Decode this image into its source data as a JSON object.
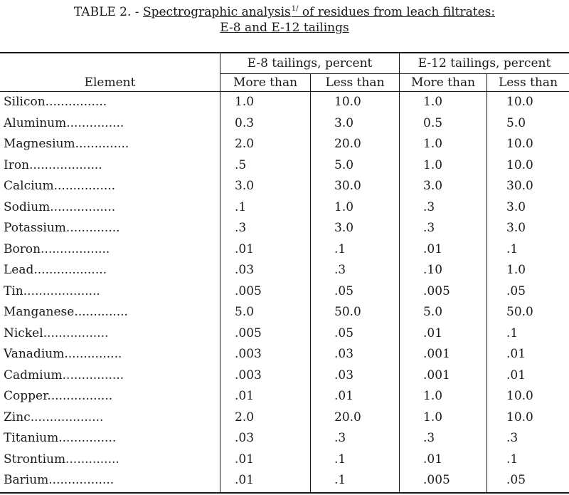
{
  "title": {
    "prefix": "TABLE 2. - ",
    "line1_underlined": "Spectrographic analysis",
    "footnote": "1/",
    "line1_rest": " of residues from leach filtrates:",
    "line2": "E-8 and E-12 tailings"
  },
  "table": {
    "header": {
      "element": "Element",
      "group_e8": "E-8 tailings, percent",
      "group_e12": "E-12 tailings, percent",
      "more_than": "More than",
      "less_than": "Less than"
    },
    "rows": [
      {
        "element": "Silicon",
        "leader": "................",
        "e8_more": "1.0",
        "e8_less": "10.0",
        "e12_more": "1.0",
        "e12_less": "10.0"
      },
      {
        "element": "Aluminum",
        "leader": "...............",
        "e8_more": "0.3",
        "e8_less": "3.0",
        "e12_more": "0.5",
        "e12_less": "5.0"
      },
      {
        "element": "Magnesium",
        "leader": "..............",
        "e8_more": "2.0",
        "e8_less": "20.0",
        "e12_more": "1.0",
        "e12_less": "10.0"
      },
      {
        "element": "Iron",
        "leader": "...................",
        "e8_more": ".5",
        "e8_less": "5.0",
        "e12_more": "1.0",
        "e12_less": "10.0"
      },
      {
        "element": "Calcium",
        "leader": "................",
        "e8_more": "3.0",
        "e8_less": "30.0",
        "e12_more": "3.0",
        "e12_less": "30.0"
      },
      {
        "element": "Sodium",
        "leader": ".................",
        "e8_more": ".1",
        "e8_less": "1.0",
        "e12_more": ".3",
        "e12_less": "3.0"
      },
      {
        "element": "Potassium",
        "leader": "..............",
        "e8_more": ".3",
        "e8_less": "3.0",
        "e12_more": ".3",
        "e12_less": "3.0"
      },
      {
        "element": "Boron",
        "leader": "..................",
        "e8_more": ".01",
        "e8_less": ".1",
        "e12_more": ".01",
        "e12_less": ".1"
      },
      {
        "element": "Lead",
        "leader": "...................",
        "e8_more": ".03",
        "e8_less": ".3",
        "e12_more": ".10",
        "e12_less": "1.0"
      },
      {
        "element": "Tin",
        "leader": "....................",
        "e8_more": ".005",
        "e8_less": ".05",
        "e12_more": ".005",
        "e12_less": ".05"
      },
      {
        "element": "Manganese",
        "leader": "..............",
        "e8_more": "5.0",
        "e8_less": "50.0",
        "e12_more": "5.0",
        "e12_less": "50.0"
      },
      {
        "element": "Nickel",
        "leader": ".................",
        "e8_more": ".005",
        "e8_less": ".05",
        "e12_more": ".01",
        "e12_less": ".1"
      },
      {
        "element": "Vanadium",
        "leader": "...............",
        "e8_more": ".003",
        "e8_less": ".03",
        "e12_more": ".001",
        "e12_less": ".01"
      },
      {
        "element": "Cadmium",
        "leader": "................",
        "e8_more": ".003",
        "e8_less": ".03",
        "e12_more": ".001",
        "e12_less": ".01"
      },
      {
        "element": "Copper",
        "leader": ".................",
        "e8_more": ".01",
        "e8_less": ".01",
        "e12_more": "1.0",
        "e12_less": "10.0"
      },
      {
        "element": "Zinc",
        "leader": "...................",
        "e8_more": "2.0",
        "e8_less": "20.0",
        "e12_more": "1.0",
        "e12_less": "10.0"
      },
      {
        "element": "Titanium",
        "leader": "...............",
        "e8_more": ".03",
        "e8_less": ".3",
        "e12_more": ".3",
        "e12_less": ".3"
      },
      {
        "element": "Strontium",
        "leader": "..............",
        "e8_more": ".01",
        "e8_less": ".1",
        "e12_more": ".01",
        "e12_less": ".1"
      },
      {
        "element": "Barium",
        "leader": ".................",
        "e8_more": ".01",
        "e8_less": ".1",
        "e12_more": ".005",
        "e12_less": ".05"
      }
    ]
  }
}
